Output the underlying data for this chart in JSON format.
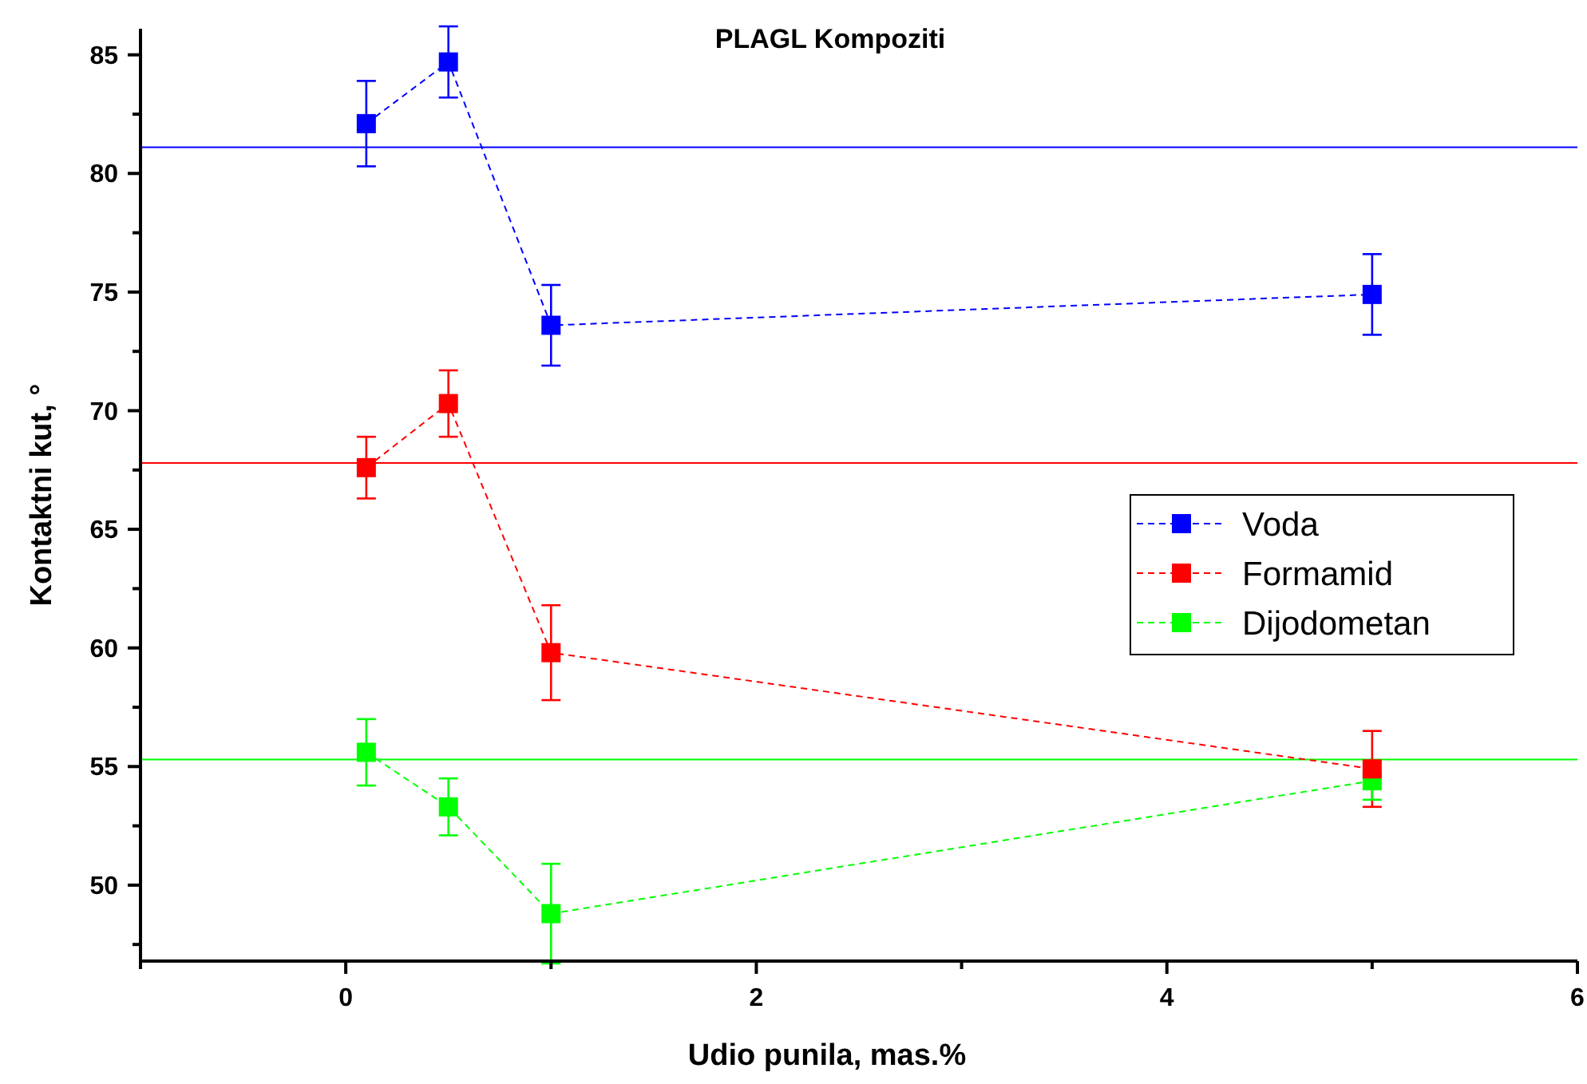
{
  "chart_data": {
    "type": "line",
    "title": "PLAGL Kompoziti",
    "xlabel": "Udio punila, mas.%",
    "ylabel": "Kontaktni kut, °",
    "x": [
      0.1,
      0.5,
      1,
      5
    ],
    "series": [
      {
        "name": "Voda",
        "color": "#0000ff",
        "values": [
          82.1,
          84.7,
          73.6,
          74.9
        ],
        "errors": [
          1.8,
          1.5,
          1.7,
          1.7
        ]
      },
      {
        "name": "Formamid",
        "color": "#ff0000",
        "values": [
          67.6,
          70.3,
          59.8,
          54.9
        ],
        "errors": [
          1.3,
          1.4,
          2.0,
          1.6
        ]
      },
      {
        "name": "Dijodometan",
        "color": "#00ff00",
        "values": [
          55.6,
          53.3,
          48.8,
          54.4
        ],
        "errors": [
          1.4,
          1.2,
          2.1,
          0.8
        ]
      }
    ],
    "ref_lines": [
      {
        "axis": "y",
        "value": 81.1,
        "color": "#0000ff"
      },
      {
        "axis": "y",
        "value": 67.8,
        "color": "#ff0000"
      },
      {
        "axis": "y",
        "value": 55.3,
        "color": "#00ff00"
      }
    ],
    "xlim": [
      -1,
      6
    ],
    "ylim": [
      46.8,
      86.1
    ],
    "xticks": [
      {
        "value": -1,
        "label": null
      },
      0,
      {
        "value": 1,
        "label": null
      },
      2,
      {
        "value": 3,
        "label": null
      },
      4,
      {
        "value": 5,
        "label": null
      },
      6
    ],
    "yticks": [
      {
        "value": 47.5,
        "label": null
      },
      50,
      {
        "value": 52.5,
        "label": null
      },
      55,
      {
        "value": 57.5,
        "label": null
      },
      60,
      {
        "value": 62.5,
        "label": null
      },
      65,
      {
        "value": 67.5,
        "label": null
      },
      70,
      {
        "value": 72.5,
        "label": null
      },
      75,
      {
        "value": 77.5,
        "label": null
      },
      80,
      {
        "value": 82.5,
        "label": null
      },
      85
    ],
    "marker": "square",
    "line_style": "dashed",
    "legend": "right",
    "grid": false
  }
}
